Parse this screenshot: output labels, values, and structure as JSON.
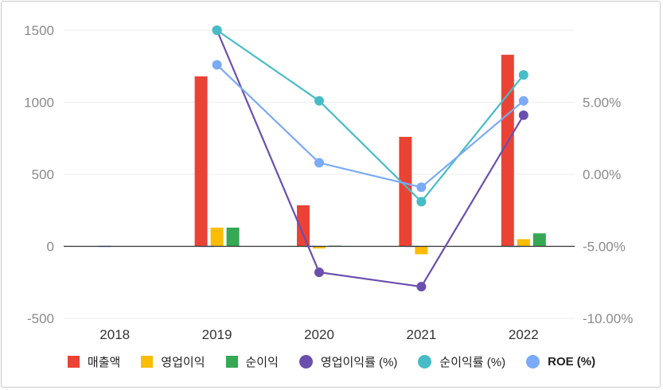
{
  "chart_data": {
    "type": "bar",
    "categories": [
      "2018",
      "2019",
      "2020",
      "2021",
      "2022"
    ],
    "y_left": {
      "ylim": [
        -500,
        1500
      ],
      "ticks": [
        "1500",
        "1000",
        "500",
        "0",
        "-500"
      ]
    },
    "y_right": {
      "ylim": [
        -10,
        10
      ],
      "ticks": [
        "5.00%",
        "0.00%",
        "-5.00%",
        "-10.00%"
      ]
    },
    "bar_series": [
      {
        "name": "매출액",
        "color": "#ea4335",
        "values": [
          0,
          1180,
          285,
          760,
          1330
        ]
      },
      {
        "name": "영업이익",
        "color": "#fbbc04",
        "values": [
          0,
          130,
          -15,
          -55,
          50
        ]
      },
      {
        "name": "순이익",
        "color": "#34a853",
        "values": [
          0,
          130,
          5,
          0,
          90
        ]
      }
    ],
    "line_series": [
      {
        "name": "영업이익률 (%)",
        "color": "#6b4fae",
        "values": [
          null,
          10,
          -6.8,
          -7.8,
          4.1
        ]
      },
      {
        "name": "순이익률 (%)",
        "color": "#46bdc6",
        "values": [
          null,
          10,
          5.1,
          -1.9,
          6.9
        ]
      },
      {
        "name": "ROE (%)",
        "color": "#7baaf7",
        "values": [
          null,
          7.6,
          0.8,
          -0.9,
          5.1
        ]
      }
    ],
    "grid": true,
    "legend_position": "bottom"
  },
  "legend": [
    {
      "label": "매출액",
      "color": "#ea4335",
      "shape": "square",
      "bold": false
    },
    {
      "label": "영업이익",
      "color": "#fbbc04",
      "shape": "square",
      "bold": false
    },
    {
      "label": "순이익",
      "color": "#34a853",
      "shape": "square",
      "bold": false
    },
    {
      "label": "영업이익률 (%)",
      "color": "#6b4fae",
      "shape": "circle",
      "bold": false
    },
    {
      "label": "순이익률 (%)",
      "color": "#46bdc6",
      "shape": "circle",
      "bold": false
    },
    {
      "label": "ROE (%)",
      "color": "#7baaf7",
      "shape": "circle",
      "bold": true
    }
  ]
}
